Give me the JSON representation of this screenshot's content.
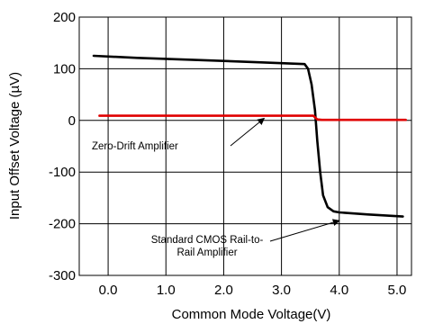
{
  "chart_data": {
    "type": "line",
    "xlabel": "Common Mode Voltage(V)",
    "ylabel": "Input Offset Voltage (µV)",
    "xlim": [
      -0.5,
      5.25
    ],
    "ylim": [
      -300,
      200
    ],
    "x_ticks": [
      0.0,
      1.0,
      2.0,
      3.0,
      4.0,
      5.0
    ],
    "x_tick_labels": [
      "0.0",
      "1.0",
      "2.0",
      "3.0",
      "4.0",
      "5.0"
    ],
    "y_ticks": [
      200,
      100,
      0,
      -100,
      -200,
      -300
    ],
    "y_tick_labels": [
      "200",
      "100",
      "0",
      "-100",
      "-200",
      "-300"
    ],
    "grid": true,
    "series": [
      {
        "name": "Standard CMOS Rail-to-Rail Amplifier",
        "color": "#000000",
        "points": [
          [
            -0.25,
            125
          ],
          [
            0.5,
            121
          ],
          [
            1.5,
            117
          ],
          [
            2.5,
            113
          ],
          [
            3.2,
            110
          ],
          [
            3.4,
            109
          ],
          [
            3.46,
            100
          ],
          [
            3.52,
            70
          ],
          [
            3.58,
            20
          ],
          [
            3.62,
            -40
          ],
          [
            3.67,
            -100
          ],
          [
            3.72,
            -145
          ],
          [
            3.8,
            -168
          ],
          [
            3.9,
            -176
          ],
          [
            4.0,
            -178
          ],
          [
            4.5,
            -182
          ],
          [
            5.1,
            -186
          ]
        ]
      },
      {
        "name": "Zero-Drift Amplifier",
        "color": "#e00000",
        "points": [
          [
            -0.15,
            9
          ],
          [
            3.55,
            9
          ],
          [
            3.62,
            2
          ],
          [
            3.7,
            1
          ],
          [
            5.15,
            1
          ]
        ]
      }
    ],
    "annotations": [
      {
        "id": "zero-drift",
        "lines": [
          "Zero-Drift Amplifier"
        ],
        "arrow_to": [
          2.7,
          4
        ]
      },
      {
        "id": "cmos",
        "lines": [
          "Standard CMOS Rail-to-",
          "Rail Amplifier"
        ],
        "arrow_to": [
          4.0,
          -194
        ]
      }
    ]
  }
}
